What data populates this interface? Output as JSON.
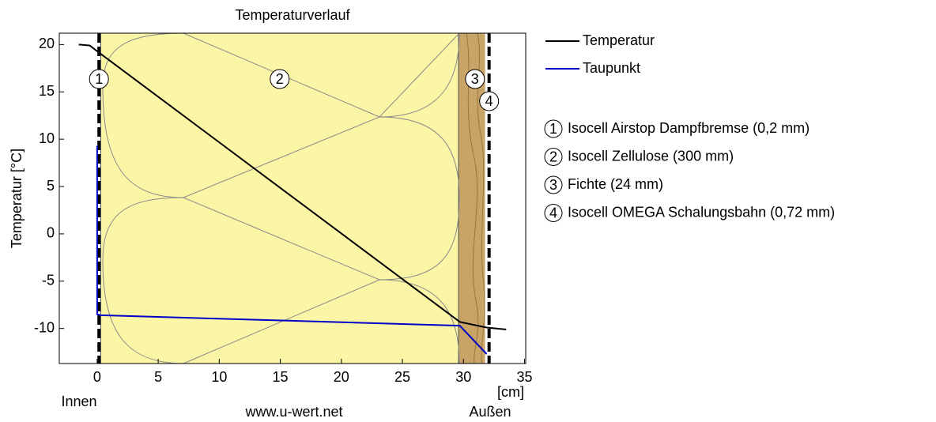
{
  "chart_data": {
    "type": "line",
    "title": "Temperaturverlauf",
    "ylabel": "Temperatur [°C]",
    "xlabel": "[cm]",
    "annotations": {
      "inside": "Innen",
      "source": "www.u-wert.net",
      "outside": "Außen"
    },
    "xlim": [
      -3.1,
      35.1
    ],
    "xticks": [
      0,
      5,
      10,
      15,
      20,
      25,
      30,
      35
    ],
    "ylim": [
      -13.7,
      21.2
    ],
    "yticks": [
      -10,
      -5,
      0,
      5,
      10,
      15,
      20
    ],
    "grid": false,
    "layers": [
      {
        "number": "1",
        "name": "Isocell Airstop Dampfbremse (0,2 mm)",
        "kind": "membrane",
        "x": [
          0,
          0.3
        ]
      },
      {
        "number": "2",
        "name": "Isocell Zellulose (300 mm)",
        "kind": "insulation",
        "color": "#fbf5a6",
        "x": [
          0.3,
          29.6
        ]
      },
      {
        "number": "3",
        "name": "Fichte (24 mm)",
        "kind": "wood",
        "color": "#c9a467",
        "x": [
          29.6,
          31.9
        ]
      },
      {
        "number": "4",
        "name": "Isocell OMEGA Schalungsbahn (0,72 mm)",
        "kind": "membrane",
        "x": [
          31.9,
          32.3
        ]
      }
    ],
    "series": [
      {
        "name": "Temperatur",
        "color": "#000000",
        "x": [
          -1.5,
          -0.6,
          0,
          29.7,
          31.9,
          33.5
        ],
        "values": [
          20,
          19.9,
          19.3,
          -9.3,
          -9.9,
          -10.1
        ]
      },
      {
        "name": "Taupunkt",
        "color": "#0000c8",
        "x": [
          0,
          0,
          0.3,
          29.7,
          31.9
        ],
        "values": [
          9.3,
          -8.5,
          -8.6,
          -9.7,
          -12.7
        ]
      }
    ]
  }
}
